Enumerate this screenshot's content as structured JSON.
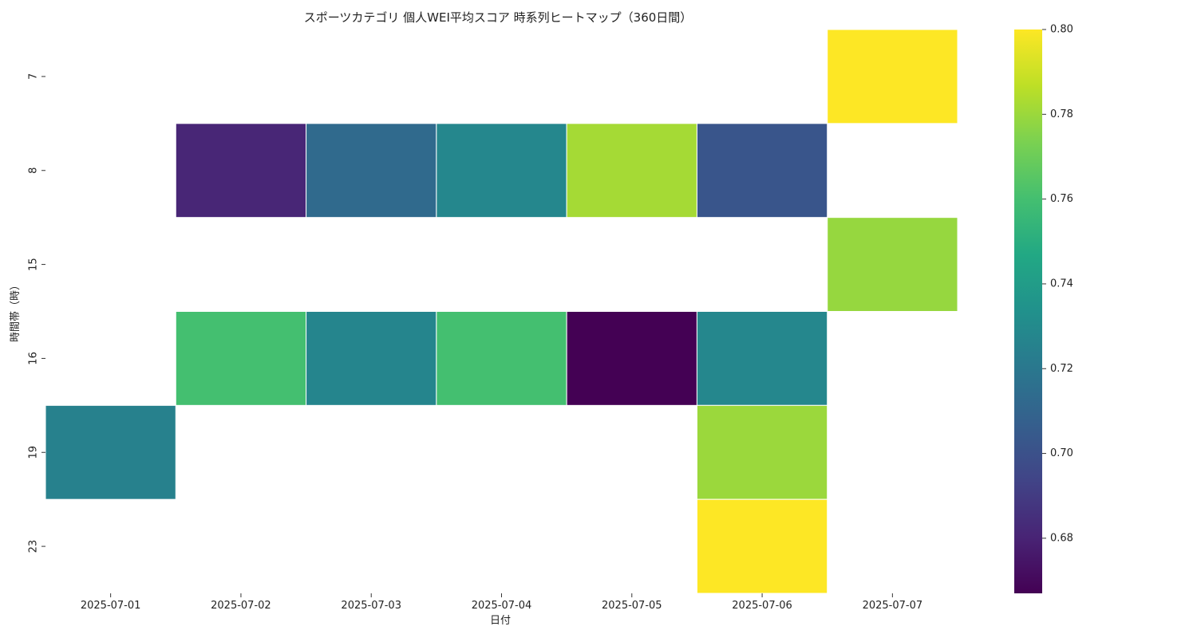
{
  "chart_data": {
    "type": "heatmap",
    "title": "スポーツカテゴリ 個人WEI平均スコア 時系列ヒートマップ（360日間）",
    "xlabel": "日付",
    "ylabel": "時間帯（時）",
    "x_categories": [
      "2025-07-01",
      "2025-07-02",
      "2025-07-03",
      "2025-07-04",
      "2025-07-05",
      "2025-07-06",
      "2025-07-07"
    ],
    "y_categories": [
      "7",
      "8",
      "15",
      "16",
      "19",
      "23"
    ],
    "values": [
      [
        null,
        null,
        null,
        null,
        null,
        null,
        0.8
      ],
      [
        null,
        0.681,
        0.713,
        0.728,
        0.782,
        0.702,
        null
      ],
      [
        null,
        null,
        null,
        null,
        null,
        null,
        0.779
      ],
      [
        null,
        0.76,
        0.727,
        0.76,
        0.667,
        0.728,
        null
      ],
      [
        0.725,
        null,
        null,
        null,
        null,
        0.78,
        null
      ],
      [
        null,
        null,
        null,
        null,
        null,
        0.8,
        null
      ]
    ],
    "colormap": "viridis",
    "colorbar": {
      "min": 0.667,
      "max": 0.8,
      "ticks": [
        0.68,
        0.7,
        0.72,
        0.74,
        0.76,
        0.78,
        0.8
      ],
      "tick_labels": [
        "0.68",
        "0.70",
        "0.72",
        "0.74",
        "0.76",
        "0.78",
        "0.80"
      ]
    },
    "missing_color": "#ffffff",
    "cell_border_color": "#ffffff"
  }
}
